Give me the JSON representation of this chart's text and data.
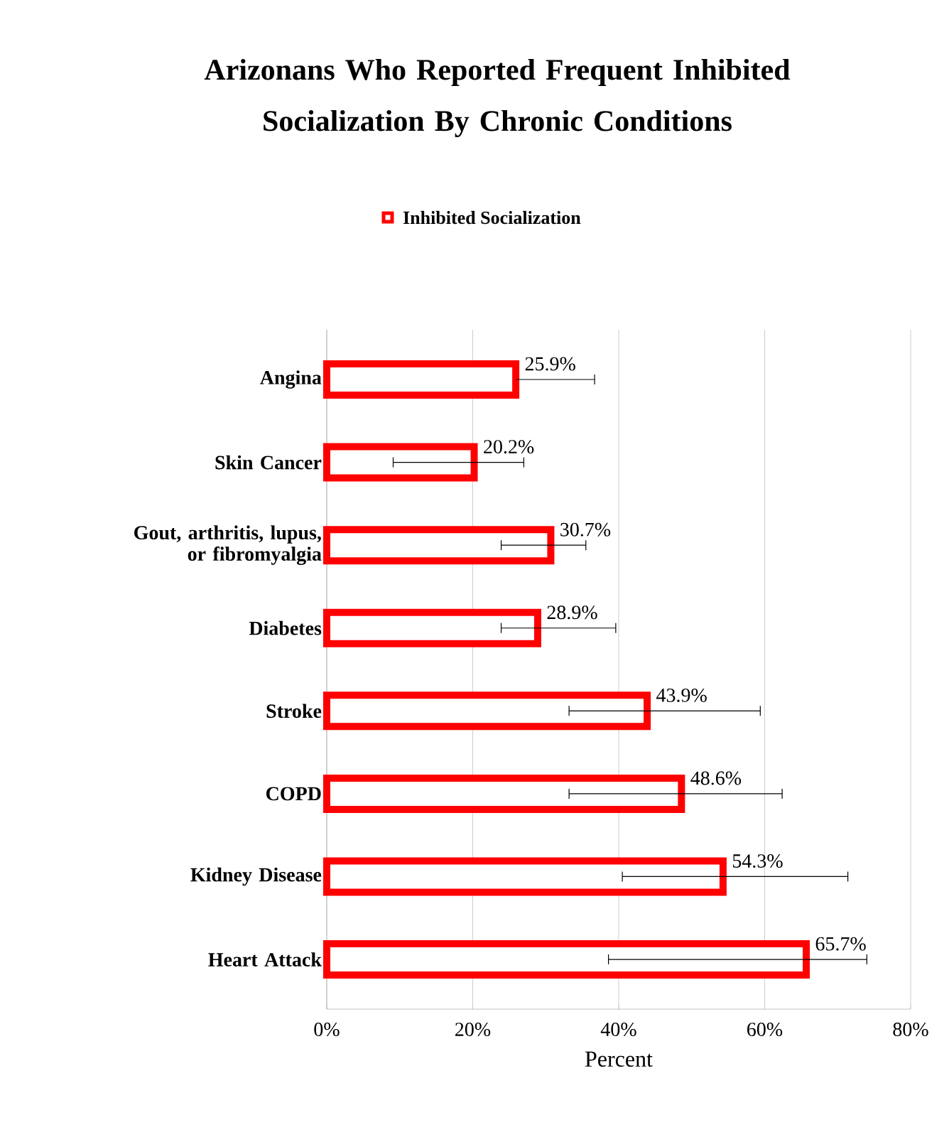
{
  "chart_data": {
    "type": "bar",
    "orientation": "horizontal",
    "title": "Arizonans  Who Reported Frequent Inhibited Socialization By Chronic Conditions",
    "categories": [
      "Angina",
      "Skin Cancer",
      "Gout, arthritis, lupus, or fibromyalgia",
      "Diabetes",
      "Stroke",
      "COPD",
      "Kidney Disease",
      "Heart Attack"
    ],
    "series": [
      {
        "name": "Inhibited Socialization",
        "color": "#ff0000",
        "values": [
          25.9,
          20.2,
          30.7,
          28.9,
          43.9,
          48.6,
          54.3,
          65.7
        ],
        "errors": [
          [
            25.9,
            36.7
          ],
          [
            9.1,
            27.0
          ],
          [
            23.9,
            35.5
          ],
          [
            23.9,
            39.6
          ],
          [
            33.2,
            59.4
          ],
          [
            33.2,
            62.4
          ],
          [
            40.5,
            71.4
          ],
          [
            38.6,
            74.0
          ]
        ],
        "value_labels": [
          "25.9%",
          "20.2%",
          "30.7%",
          "28.9%",
          "43.9%",
          "48.6%",
          "54.3%",
          "65.7%"
        ]
      }
    ],
    "xlabel": "Percent",
    "xlim": [
      0,
      80
    ],
    "xticks": [
      {
        "value": 0,
        "label": "0%"
      },
      {
        "value": 20,
        "label": "20%"
      },
      {
        "value": 40,
        "label": "40%"
      },
      {
        "value": 60,
        "label": "60%"
      },
      {
        "value": 80,
        "label": "80%"
      }
    ],
    "grid": "x",
    "legend": "top"
  }
}
